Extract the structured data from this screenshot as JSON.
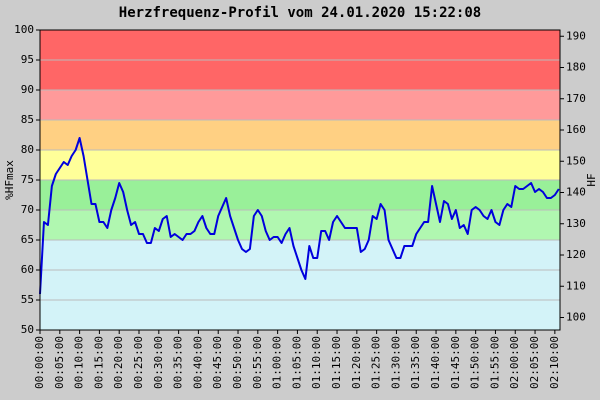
{
  "chart_data": {
    "type": "line",
    "title": "Herzfrequenz-Profil vom 24.01.2020 15:22:08",
    "y_label": "%HFmax",
    "y2_label": "HF",
    "x": [
      0,
      1,
      2,
      3,
      4,
      5,
      6,
      7,
      8,
      9,
      10,
      11,
      12,
      13,
      14,
      15,
      16,
      17,
      18,
      19,
      20,
      21,
      22,
      23,
      24,
      25,
      26,
      27,
      28,
      29,
      30,
      31,
      32,
      33,
      34,
      35,
      36,
      37,
      38,
      39,
      40,
      41,
      42,
      43,
      44,
      45,
      46,
      47,
      48,
      49,
      50,
      51,
      52,
      53,
      54,
      55,
      56,
      57,
      58,
      59,
      60,
      61,
      62,
      63,
      64,
      65,
      66,
      67,
      68,
      69,
      70,
      71,
      72,
      73,
      74,
      75,
      76,
      77,
      78,
      79,
      80,
      81,
      82,
      83,
      84,
      85,
      86,
      87,
      88,
      89,
      90,
      91,
      92,
      93,
      94,
      95,
      96,
      97,
      98,
      99,
      100,
      101,
      102,
      103,
      104,
      105,
      106,
      107,
      108,
      109,
      110,
      111,
      112,
      113,
      114,
      115,
      116,
      117,
      118,
      119,
      120,
      121,
      122,
      123,
      124,
      125,
      126,
      127,
      128,
      129,
      130,
      131
    ],
    "values": [
      56,
      68,
      67.5,
      74,
      76,
      77,
      78,
      77.5,
      79,
      80,
      82,
      79,
      75,
      71,
      71,
      68,
      68,
      67,
      70,
      72,
      74.5,
      73,
      70,
      67.5,
      68,
      66,
      66,
      64.5,
      64.5,
      67,
      66.5,
      68.5,
      69,
      65.5,
      66,
      65.5,
      65,
      66,
      66,
      66.5,
      68,
      69,
      67,
      66,
      66,
      69,
      70.5,
      72,
      69,
      67,
      65,
      63.5,
      63,
      63.5,
      69,
      70,
      69,
      66.5,
      65,
      65.5,
      65.5,
      64.5,
      66,
      67,
      64,
      62,
      60,
      58.5,
      64,
      62,
      62,
      66.5,
      66.5,
      65,
      68,
      69,
      68,
      67,
      67,
      67,
      67,
      63,
      63.5,
      65,
      69,
      68.5,
      71,
      70,
      65,
      63.5,
      62,
      62,
      64,
      64,
      64,
      66,
      67,
      68,
      68,
      74,
      71,
      68,
      71.5,
      71,
      68.5,
      70,
      67,
      67.5,
      66,
      70,
      70.5,
      70,
      69,
      68.5,
      70,
      68,
      67.5,
      70,
      71,
      70.5,
      74,
      73.5,
      73.5,
      74,
      74.5,
      73,
      73.5,
      73,
      72,
      72,
      72.5,
      73.5
    ],
    "color": "#0000dd",
    "xlim": [
      0,
      131.3
    ],
    "xticks": [
      {
        "value": 0,
        "label": "00:00:00"
      },
      {
        "value": 5,
        "label": "00:05:00"
      },
      {
        "value": 10,
        "label": "00:10:00"
      },
      {
        "value": 15,
        "label": "00:15:00"
      },
      {
        "value": 20,
        "label": "00:20:00"
      },
      {
        "value": 25,
        "label": "00:25:00"
      },
      {
        "value": 30,
        "label": "00:30:00"
      },
      {
        "value": 35,
        "label": "00:35:00"
      },
      {
        "value": 40,
        "label": "00:40:00"
      },
      {
        "value": 45,
        "label": "00:45:00"
      },
      {
        "value": 50,
        "label": "00:50:00"
      },
      {
        "value": 55,
        "label": "00:55:00"
      },
      {
        "value": 60,
        "label": "01:00:00"
      },
      {
        "value": 65,
        "label": "01:05:00"
      },
      {
        "value": 70,
        "label": "01:10:00"
      },
      {
        "value": 75,
        "label": "01:15:00"
      },
      {
        "value": 80,
        "label": "01:20:00"
      },
      {
        "value": 85,
        "label": "01:25:00"
      },
      {
        "value": 90,
        "label": "01:30:00"
      },
      {
        "value": 95,
        "label": "01:35:00"
      },
      {
        "value": 100,
        "label": "01:40:00"
      },
      {
        "value": 105,
        "label": "01:45:00"
      },
      {
        "value": 110,
        "label": "01:50:00"
      },
      {
        "value": 115,
        "label": "01:55:00"
      },
      {
        "value": 120,
        "label": "02:00:00"
      },
      {
        "value": 125,
        "label": "02:05:00"
      },
      {
        "value": 130,
        "label": "02:10:00"
      }
    ],
    "ylim": [
      50,
      100
    ],
    "yticks": [
      50,
      55,
      60,
      65,
      70,
      75,
      80,
      85,
      90,
      95,
      100
    ],
    "y2lim": [
      96,
      192
    ],
    "y2ticks": [
      100,
      110,
      120,
      130,
      140,
      150,
      160,
      170,
      180,
      190
    ],
    "grid": true,
    "zones": [
      {
        "from": 50,
        "to": 65,
        "color": "#d3f3f8"
      },
      {
        "from": 65,
        "to": 70,
        "color": "#b0f7b0"
      },
      {
        "from": 70,
        "to": 75,
        "color": "#99f099"
      },
      {
        "from": 75,
        "to": 80,
        "color": "#ffff99"
      },
      {
        "from": 80,
        "to": 85,
        "color": "#ffd083"
      },
      {
        "from": 85,
        "to": 90,
        "color": "#ff9a9a"
      },
      {
        "from": 90,
        "to": 100,
        "color": "#ff6666"
      }
    ]
  }
}
